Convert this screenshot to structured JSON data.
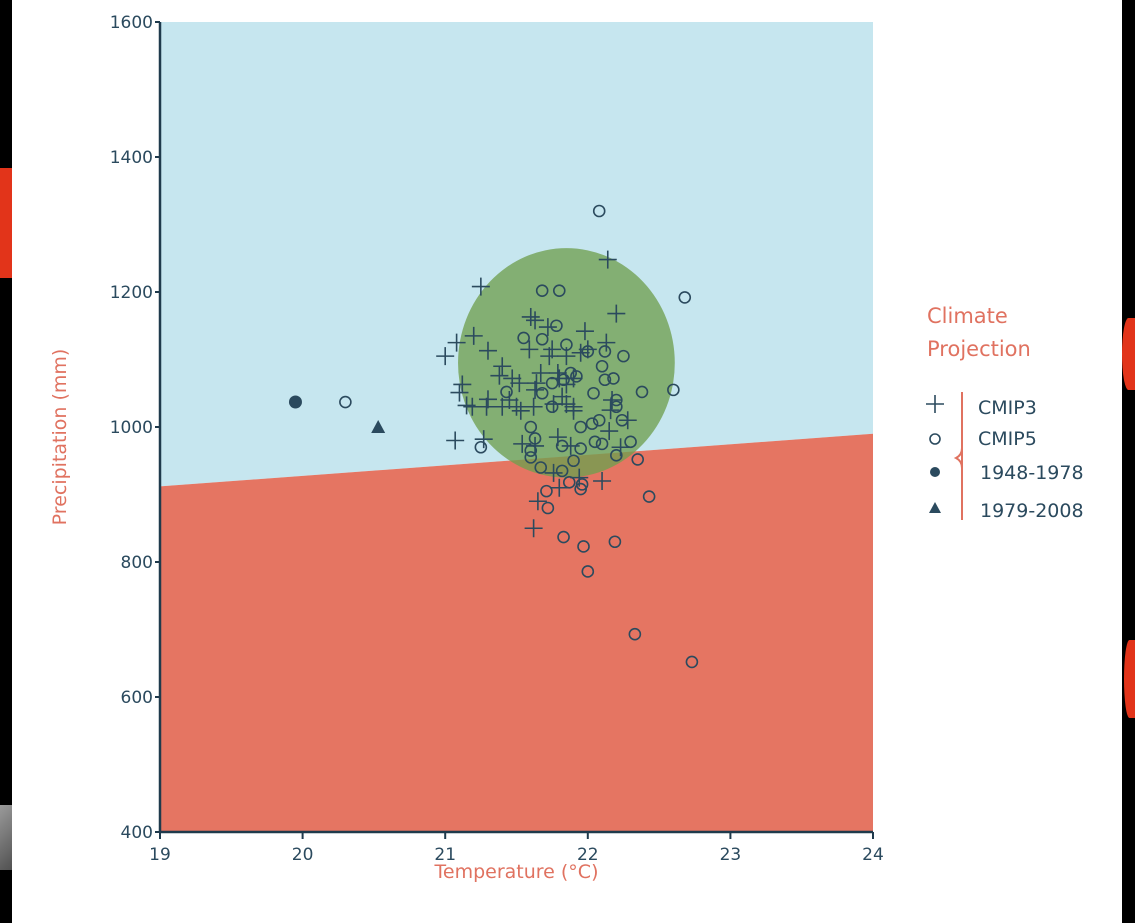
{
  "colors": {
    "page_background": "#ffffff",
    "wet_region": "#c6e6ef",
    "dry_region": "#e57562",
    "consensus_circle": "#6f9f4f",
    "marker": "#2b4a5e",
    "axis": "#1f3a4c",
    "label_accent": "#e07260",
    "slide_background": "#000000",
    "slide_accent_red": "#e2341a"
  },
  "legend": {
    "title_line1": "Climate",
    "title_line2": "Projection",
    "items": [
      {
        "label": "CMIP3",
        "symbol": "plus-icon"
      },
      {
        "label": "CMIP5",
        "symbol": "open-circle-icon"
      },
      {
        "label": "1948-1978",
        "symbol": "filled-circle-icon"
      },
      {
        "label": "1979-2008",
        "symbol": "filled-triangle-icon"
      }
    ]
  },
  "chart_data": {
    "type": "scatter",
    "xlabel": "Temperature (°C)",
    "ylabel": "Precipitation (mm)",
    "xlim": [
      19,
      24
    ],
    "ylim": [
      400,
      1600
    ],
    "xticks": [
      19,
      20,
      21,
      22,
      23,
      24
    ],
    "yticks": [
      400,
      600,
      800,
      1000,
      1200,
      1400,
      1600
    ],
    "grid": false,
    "legend_position": "right",
    "regions": {
      "dividing_line": [
        [
          19,
          912
        ],
        [
          24,
          990
        ]
      ],
      "above": "wet",
      "below": "dry"
    },
    "consensus_circle": {
      "center": [
        21.85,
        1095
      ],
      "radius_x": 0.76,
      "radius_y": 170
    },
    "series": [
      {
        "name": "CMIP3",
        "marker": "plus",
        "points": [
          [
            21.25,
            1208
          ],
          [
            22.14,
            1248
          ],
          [
            21.6,
            1163
          ],
          [
            21.63,
            1158
          ],
          [
            22.2,
            1168
          ],
          [
            21.72,
            1148
          ],
          [
            21.98,
            1142
          ],
          [
            21.2,
            1135
          ],
          [
            22.13,
            1125
          ],
          [
            21.08,
            1125
          ],
          [
            21.3,
            1113
          ],
          [
            21.75,
            1115
          ],
          [
            21.59,
            1115
          ],
          [
            22.0,
            1115
          ],
          [
            21.0,
            1105
          ],
          [
            21.73,
            1105
          ],
          [
            21.85,
            1105
          ],
          [
            21.95,
            1110
          ],
          [
            21.4,
            1090
          ],
          [
            21.67,
            1080
          ],
          [
            21.79,
            1080
          ],
          [
            21.8,
            1072
          ],
          [
            21.38,
            1076
          ],
          [
            21.12,
            1063
          ],
          [
            21.52,
            1065
          ],
          [
            21.9,
            1072
          ],
          [
            21.1,
            1051
          ],
          [
            21.47,
            1072
          ],
          [
            21.64,
            1065
          ],
          [
            21.85,
            1063
          ],
          [
            21.3,
            1041
          ],
          [
            21.15,
            1032
          ],
          [
            21.63,
            1055
          ],
          [
            22.17,
            1040
          ],
          [
            21.45,
            1040
          ],
          [
            21.82,
            1045
          ],
          [
            21.9,
            1030
          ],
          [
            22.16,
            1025
          ],
          [
            21.19,
            1030
          ],
          [
            21.29,
            1030
          ],
          [
            21.4,
            1030
          ],
          [
            21.5,
            1030
          ],
          [
            21.62,
            1030
          ],
          [
            21.76,
            1034
          ],
          [
            21.85,
            1034
          ],
          [
            21.9,
            1024
          ],
          [
            21.53,
            1024
          ],
          [
            22.28,
            1010
          ],
          [
            22.15,
            994
          ],
          [
            21.07,
            980
          ],
          [
            21.27,
            982
          ],
          [
            21.54,
            975
          ],
          [
            21.63,
            972
          ],
          [
            21.88,
            972
          ],
          [
            22.23,
            970
          ],
          [
            21.79,
            985
          ],
          [
            21.76,
            932
          ],
          [
            21.94,
            925
          ],
          [
            22.1,
            920
          ],
          [
            21.8,
            910
          ],
          [
            21.65,
            890
          ],
          [
            21.62,
            850
          ]
        ]
      },
      {
        "name": "CMIP5",
        "marker": "open-circle",
        "points": [
          [
            22.08,
            1320
          ],
          [
            22.68,
            1192
          ],
          [
            21.68,
            1202
          ],
          [
            21.8,
            1202
          ],
          [
            21.78,
            1150
          ],
          [
            21.68,
            1130
          ],
          [
            21.55,
            1132
          ],
          [
            21.85,
            1122
          ],
          [
            22.0,
            1112
          ],
          [
            22.12,
            1112
          ],
          [
            22.25,
            1105
          ],
          [
            22.1,
            1090
          ],
          [
            22.12,
            1070
          ],
          [
            21.92,
            1075
          ],
          [
            22.18,
            1072
          ],
          [
            21.83,
            1070
          ],
          [
            21.88,
            1080
          ],
          [
            22.2,
            1040
          ],
          [
            22.38,
            1052
          ],
          [
            22.6,
            1055
          ],
          [
            21.75,
            1065
          ],
          [
            21.68,
            1050
          ],
          [
            22.04,
            1050
          ],
          [
            21.43,
            1052
          ],
          [
            21.75,
            1030
          ],
          [
            22.2,
            1030
          ],
          [
            22.08,
            1010
          ],
          [
            22.24,
            1010
          ],
          [
            21.6,
            1000
          ],
          [
            21.95,
            1000
          ],
          [
            22.03,
            1005
          ],
          [
            21.25,
            970
          ],
          [
            21.63,
            983
          ],
          [
            21.6,
            965
          ],
          [
            22.05,
            978
          ],
          [
            22.3,
            978
          ],
          [
            22.1,
            975
          ],
          [
            21.82,
            972
          ],
          [
            21.95,
            968
          ],
          [
            21.6,
            955
          ],
          [
            22.2,
            958
          ],
          [
            21.9,
            950
          ],
          [
            22.35,
            952
          ],
          [
            21.67,
            940
          ],
          [
            21.82,
            935
          ],
          [
            21.71,
            905
          ],
          [
            21.87,
            918
          ],
          [
            21.96,
            915
          ],
          [
            21.95,
            908
          ],
          [
            21.72,
            880
          ],
          [
            22.43,
            897
          ],
          [
            21.83,
            837
          ],
          [
            21.97,
            823
          ],
          [
            22.19,
            830
          ],
          [
            22.0,
            786
          ],
          [
            22.33,
            693
          ],
          [
            22.73,
            652
          ],
          [
            20.3,
            1037
          ]
        ]
      },
      {
        "name": "1948-1978",
        "marker": "filled-circle",
        "points": [
          [
            19.95,
            1037
          ]
        ]
      },
      {
        "name": "1979-2008",
        "marker": "filled-triangle",
        "points": [
          [
            20.53,
            1000
          ]
        ]
      }
    ]
  }
}
